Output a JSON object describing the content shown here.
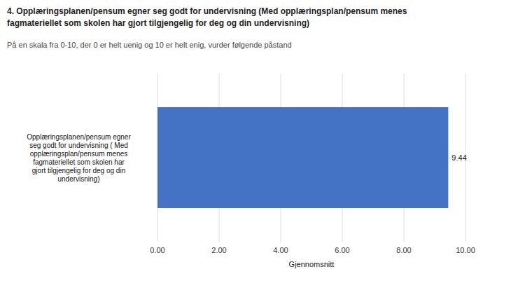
{
  "chart_data": {
    "type": "bar",
    "orientation": "horizontal",
    "title": "4. Opplæringsplanen/pensum egner seg godt for undervisning (Med opplæringsplan/pensum menes\nfagmateriellet som skolen har gjort tilgjengelig for deg og din undervisning)",
    "subtitle": "På en skala fra 0-10, der 0 er helt uenig og 10 er helt enig, vurder følgende påstand",
    "categories": [
      "Opplæringsplanen/pensum egner\nseg godt for undervisning ( Med\nopplæringsplan/pensum menes\nfagmateriellet som skolen har\ngjort tilgjengelig for deg og din\nundervisning)"
    ],
    "values": [
      9.44
    ],
    "color": "#4472c4",
    "xlabel": "Gjennomsnitt",
    "xlim": [
      0,
      10
    ],
    "xticks": [
      {
        "value": 0.0,
        "label": "0.00"
      },
      {
        "value": 2.0,
        "label": "2.00"
      },
      {
        "value": 4.0,
        "label": "4.00"
      },
      {
        "value": 6.0,
        "label": "6.00"
      },
      {
        "value": 8.0,
        "label": "8.00"
      },
      {
        "value": 10.0,
        "label": "10.00"
      }
    ],
    "grid": true,
    "data_labels": true
  }
}
